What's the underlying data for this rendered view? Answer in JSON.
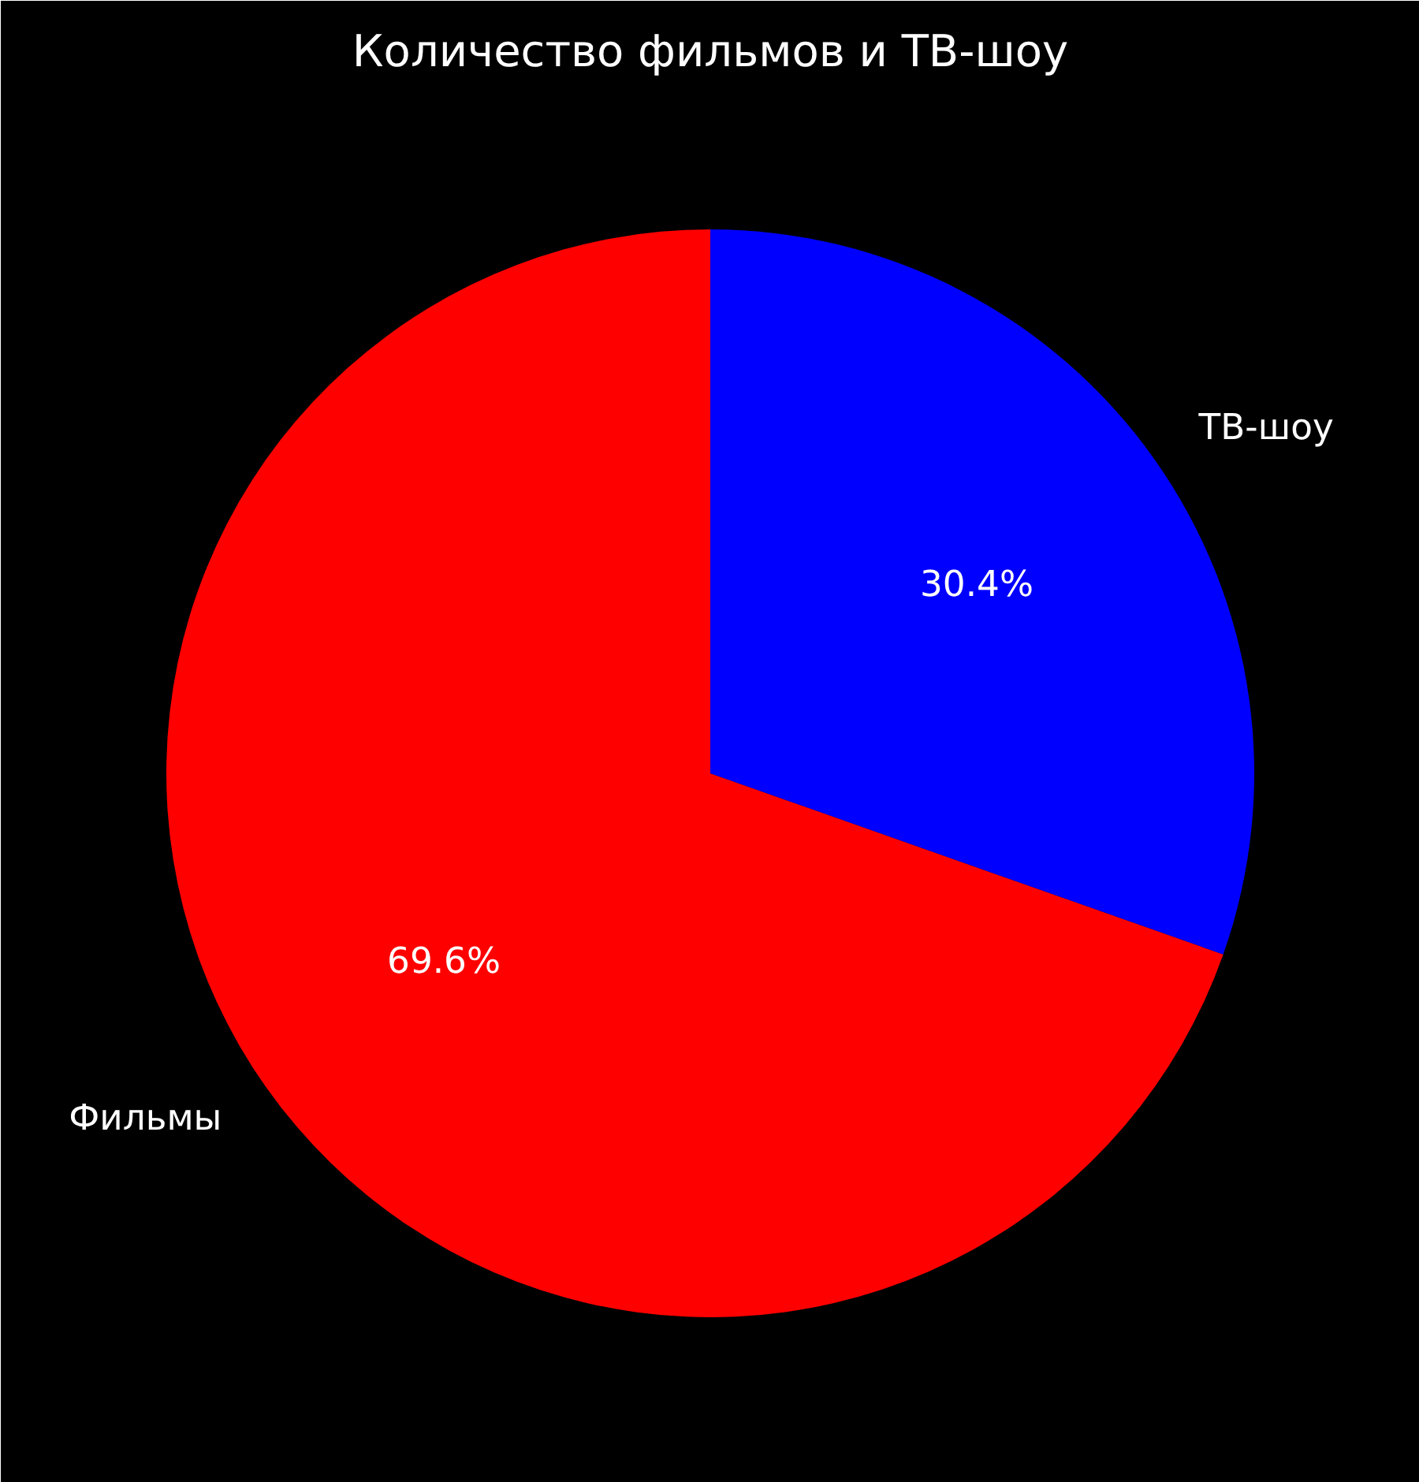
{
  "chart_data": {
    "type": "pie",
    "title": "Количество фильмов и ТВ-шоу",
    "categories": [
      "Фильмы",
      "ТВ-шоу"
    ],
    "values": [
      69.6,
      30.4
    ],
    "colors": [
      "#ff0000",
      "#0000ff"
    ],
    "value_labels": [
      "69.6%",
      "30.4%"
    ]
  }
}
